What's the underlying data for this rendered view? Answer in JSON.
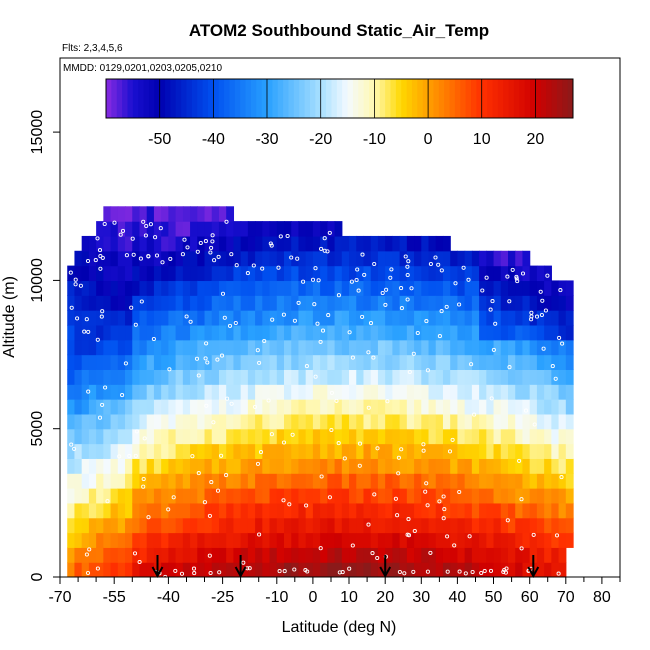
{
  "chart_data": {
    "type": "heatmap",
    "title": "ATOM2 Southbound Static_Air_Temp",
    "notes": [
      "Flts: 2,3,4,5,6",
      "MMDD: 0129,0201,0203,0205,0210"
    ],
    "xlabel": "Latitude (deg N)",
    "ylabel": "Altitude (m)",
    "xlim": [
      -70,
      85
    ],
    "ylim": [
      0,
      17500
    ],
    "x_ticks": [
      -70,
      -55,
      -40,
      -25,
      -10,
      0,
      10,
      20,
      30,
      40,
      50,
      60,
      70,
      80
    ],
    "x_tick_labels": [
      "-70",
      "-55",
      "-40",
      "-25",
      "-10",
      "0",
      "10",
      "20",
      "30",
      "40",
      "50",
      "60",
      "70",
      "80"
    ],
    "x_minor_ticks": [
      -65,
      -60,
      -50,
      -45,
      -35,
      -30,
      -20,
      -15,
      -5,
      5,
      15,
      25,
      35,
      45,
      55,
      65,
      75,
      85
    ],
    "y_ticks": [
      0,
      5000,
      10000,
      15000
    ],
    "y_tick_labels": [
      "0",
      "5000",
      "10000",
      "15000"
    ],
    "colorbar": {
      "range": [
        -60,
        27
      ],
      "ticks": [
        -50,
        -40,
        -30,
        -20,
        -10,
        0,
        10,
        20
      ],
      "tick_labels": [
        "-50",
        "-40",
        "-30",
        "-20",
        "-10",
        "0",
        "10",
        "20"
      ],
      "stops": [
        {
          "value": -60,
          "color": "#8a2be2"
        },
        {
          "value": -55,
          "color": "#1a0fd0"
        },
        {
          "value": -50,
          "color": "#0000b0"
        },
        {
          "value": -40,
          "color": "#0050f0"
        },
        {
          "value": -30,
          "color": "#28a0ff"
        },
        {
          "value": -20,
          "color": "#a8e0ff"
        },
        {
          "value": -15,
          "color": "#f4faff"
        },
        {
          "value": -10,
          "color": "#fff8b0"
        },
        {
          "value": -5,
          "color": "#ffd800"
        },
        {
          "value": 0,
          "color": "#ffa000"
        },
        {
          "value": 10,
          "color": "#ff3000"
        },
        {
          "value": 20,
          "color": "#d00000"
        },
        {
          "value": 27,
          "color": "#8b1a1a"
        }
      ]
    },
    "lat_bins": [
      -68,
      -66,
      -64,
      -62,
      -60,
      -58,
      -56,
      -54,
      -52,
      -50,
      -48,
      -46,
      -44,
      -42,
      -40,
      -38,
      -36,
      -34,
      -32,
      -30,
      -28,
      -26,
      -24,
      -22,
      -20,
      -18,
      -16,
      -14,
      -12,
      -10,
      -8,
      -6,
      -4,
      -2,
      0,
      2,
      4,
      6,
      8,
      10,
      12,
      14,
      16,
      18,
      20,
      22,
      24,
      26,
      28,
      30,
      32,
      34,
      36,
      38,
      40,
      42,
      44,
      46,
      48,
      50,
      52,
      54,
      56,
      58,
      60,
      62,
      64,
      66,
      68,
      70
    ],
    "alt_bins": [
      0,
      500,
      1000,
      1500,
      2000,
      2500,
      3000,
      3500,
      4000,
      4500,
      5000,
      5500,
      6000,
      6500,
      7000,
      7500,
      8000,
      8500,
      9000,
      9500,
      10000,
      10500,
      11000,
      11500,
      12000
    ],
    "arrow_latitudes": [
      -43,
      -20,
      20,
      61
    ]
  }
}
